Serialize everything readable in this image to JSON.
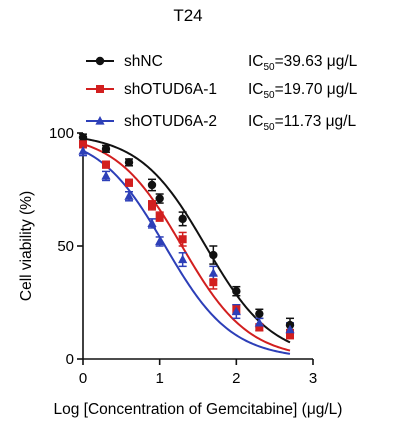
{
  "chart_data": {
    "type": "line",
    "title": "T24",
    "xlabel": "Log [Concentration of Gemcitabine] (μg/L)",
    "ylabel": "Cell viability (%)",
    "xlim": [
      0,
      3
    ],
    "ylim": [
      0,
      100
    ],
    "xticks": [
      "0",
      "1",
      "2",
      "3"
    ],
    "yticks": [
      "0",
      "50",
      "100"
    ],
    "grid": false,
    "legend_position": "top",
    "x": [
      0,
      0.3,
      0.6,
      0.9,
      1.0,
      1.3,
      1.7,
      2.0,
      2.3,
      2.7
    ],
    "series": [
      {
        "name": "shNC",
        "color": "#111111",
        "marker": "circle",
        "ic50_label": "=39.63 μg/L",
        "ic50_log": 1.6,
        "hill": 1.0,
        "values": [
          98,
          93,
          87,
          77,
          71,
          62,
          46,
          30,
          20,
          15
        ],
        "errors": [
          1.5,
          1.5,
          1.5,
          2.5,
          2,
          3,
          4,
          2,
          2,
          3
        ]
      },
      {
        "name": "shOTUD6A-1",
        "color": "#d21f1f",
        "marker": "square",
        "ic50_label": "=19.70 μg/L",
        "ic50_log": 1.29,
        "hill": 1.0,
        "values": [
          95,
          86,
          78,
          68,
          63,
          53,
          34,
          22,
          14,
          11
        ],
        "errors": [
          1.5,
          1.5,
          1.5,
          2,
          2,
          3,
          3,
          2,
          1.5,
          2
        ]
      },
      {
        "name": "shOTUD6A-2",
        "color": "#2d3fb8",
        "marker": "triangle",
        "ic50_label": "=11.73 μg/L",
        "ic50_log": 1.07,
        "hill": 1.0,
        "values": [
          92,
          81,
          72,
          60,
          52,
          44,
          38,
          21,
          16,
          13
        ],
        "errors": [
          2,
          2,
          2,
          2,
          2,
          3,
          3,
          3,
          2,
          3
        ]
      }
    ]
  },
  "legend": {
    "ic_prefix": "IC",
    "ic_sub": "50"
  }
}
